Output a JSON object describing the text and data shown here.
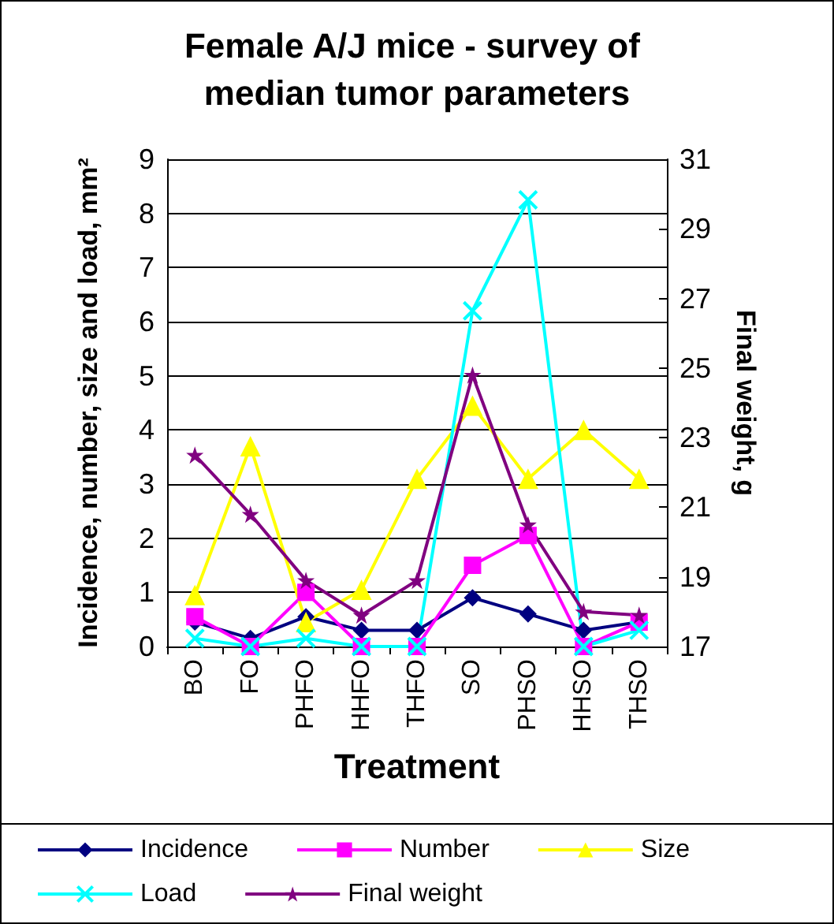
{
  "chart_data": {
    "type": "line",
    "title": "Female A/J mice - survey of median tumor parameters",
    "xlabel": "Treatment",
    "ylabel": "Incidence, number, size and load, mm²",
    "y2label": "Final weight, g",
    "categories": [
      "BO",
      "FO",
      "PHFO",
      "HHFO",
      "THFO",
      "SO",
      "PHSO",
      "HHSO",
      "THSO"
    ],
    "ylim": [
      0,
      9
    ],
    "yticks": [
      0,
      1,
      2,
      3,
      4,
      5,
      6,
      7,
      8,
      9
    ],
    "y2lim": [
      17,
      31
    ],
    "y2ticks": [
      17,
      19,
      21,
      23,
      25,
      27,
      29,
      31
    ],
    "grid": "y",
    "legend": "bottom",
    "series": [
      {
        "name": "Incidence",
        "color": "#000080",
        "marker": "diamond",
        "values": [
          0.45,
          0.15,
          0.55,
          0.3,
          0.3,
          0.9,
          0.6,
          0.3,
          0.45
        ]
      },
      {
        "name": "Number",
        "color": "#ff00ff",
        "marker": "square",
        "values": [
          0.55,
          0,
          1.0,
          0,
          0,
          1.5,
          2.05,
          0,
          0.45
        ]
      },
      {
        "name": "Size",
        "color": "#ffff00",
        "marker": "triangle",
        "values": [
          0.95,
          3.7,
          0.45,
          1.05,
          3.1,
          4.45,
          3.1,
          4.0,
          3.1
        ]
      },
      {
        "name": "Load",
        "color": "#00ffff",
        "marker": "cross",
        "values": [
          0.15,
          0,
          0.15,
          0,
          0,
          6.2,
          8.25,
          0,
          0.3
        ]
      },
      {
        "name": "Final weight",
        "color": "#800080",
        "marker": "star",
        "axis": "y2",
        "values": [
          22.5,
          20.8,
          18.9,
          17.9,
          18.9,
          24.8,
          20.5,
          18.0,
          17.9
        ]
      }
    ]
  }
}
